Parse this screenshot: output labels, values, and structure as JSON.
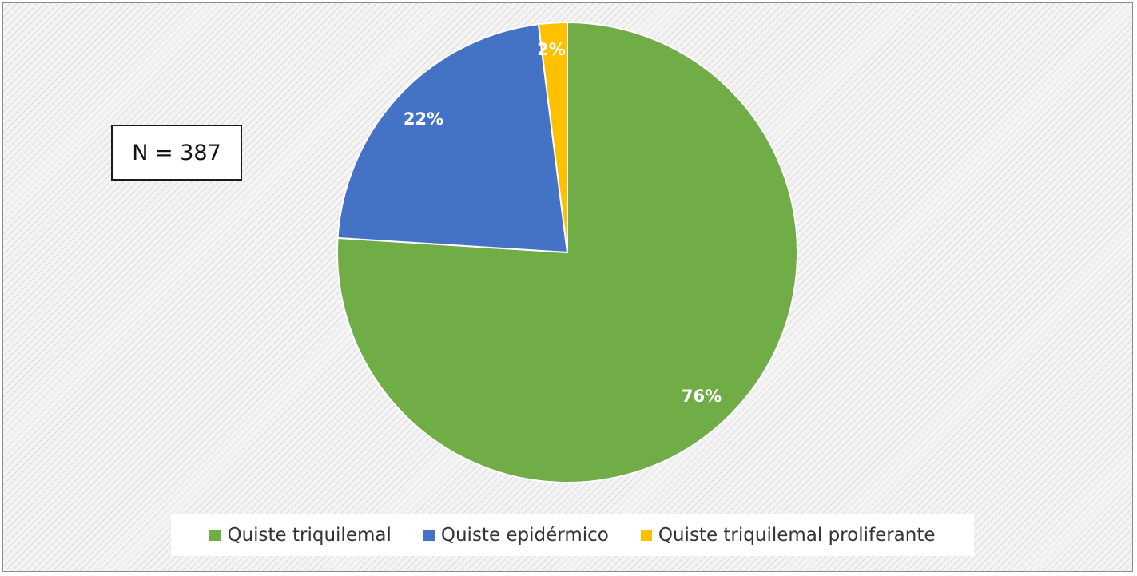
{
  "annotation": "N = 387",
  "chart_data": {
    "type": "pie",
    "title": "",
    "slices": [
      {
        "name": "Quiste triquilemal",
        "value": 76,
        "label": "76%",
        "color": "#70ad47"
      },
      {
        "name": "Quiste epidérmico",
        "value": 22,
        "label": "22%",
        "color": "#4472c4"
      },
      {
        "name": "Quiste triquilemal proliferante",
        "value": 2,
        "label": "2%",
        "color": "#ffc000"
      }
    ],
    "legend_position": "bottom",
    "start_angle": "top, clockwise"
  }
}
